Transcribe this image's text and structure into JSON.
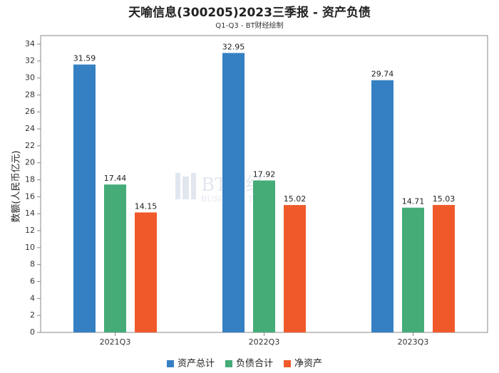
{
  "title": "天喻信息(300205)2023三季报 - 资产负债",
  "subtitle": "Q1-Q3 - BT财经绘制",
  "watermark": {
    "main": "BT财经",
    "sub": "BUSINESS TIMES"
  },
  "chart_data": {
    "type": "bar",
    "categories": [
      "2021Q3",
      "2022Q3",
      "2023Q3"
    ],
    "series": [
      {
        "name": "资产总计",
        "color": "#3580c2",
        "values": [
          31.59,
          32.95,
          29.74
        ]
      },
      {
        "name": "负债合计",
        "color": "#45ac78",
        "values": [
          17.44,
          17.92,
          14.71
        ]
      },
      {
        "name": "净资产",
        "color": "#f05a2a",
        "values": [
          14.15,
          15.02,
          15.03
        ]
      }
    ],
    "ylabel": "数额(人民币亿元)",
    "xlabel": "",
    "ylim": [
      0,
      35
    ],
    "yticks": [
      0,
      2,
      4,
      6,
      8,
      10,
      12,
      14,
      16,
      18,
      20,
      22,
      24,
      26,
      28,
      30,
      32,
      34
    ],
    "grid": false,
    "legend_position": "bottom"
  }
}
